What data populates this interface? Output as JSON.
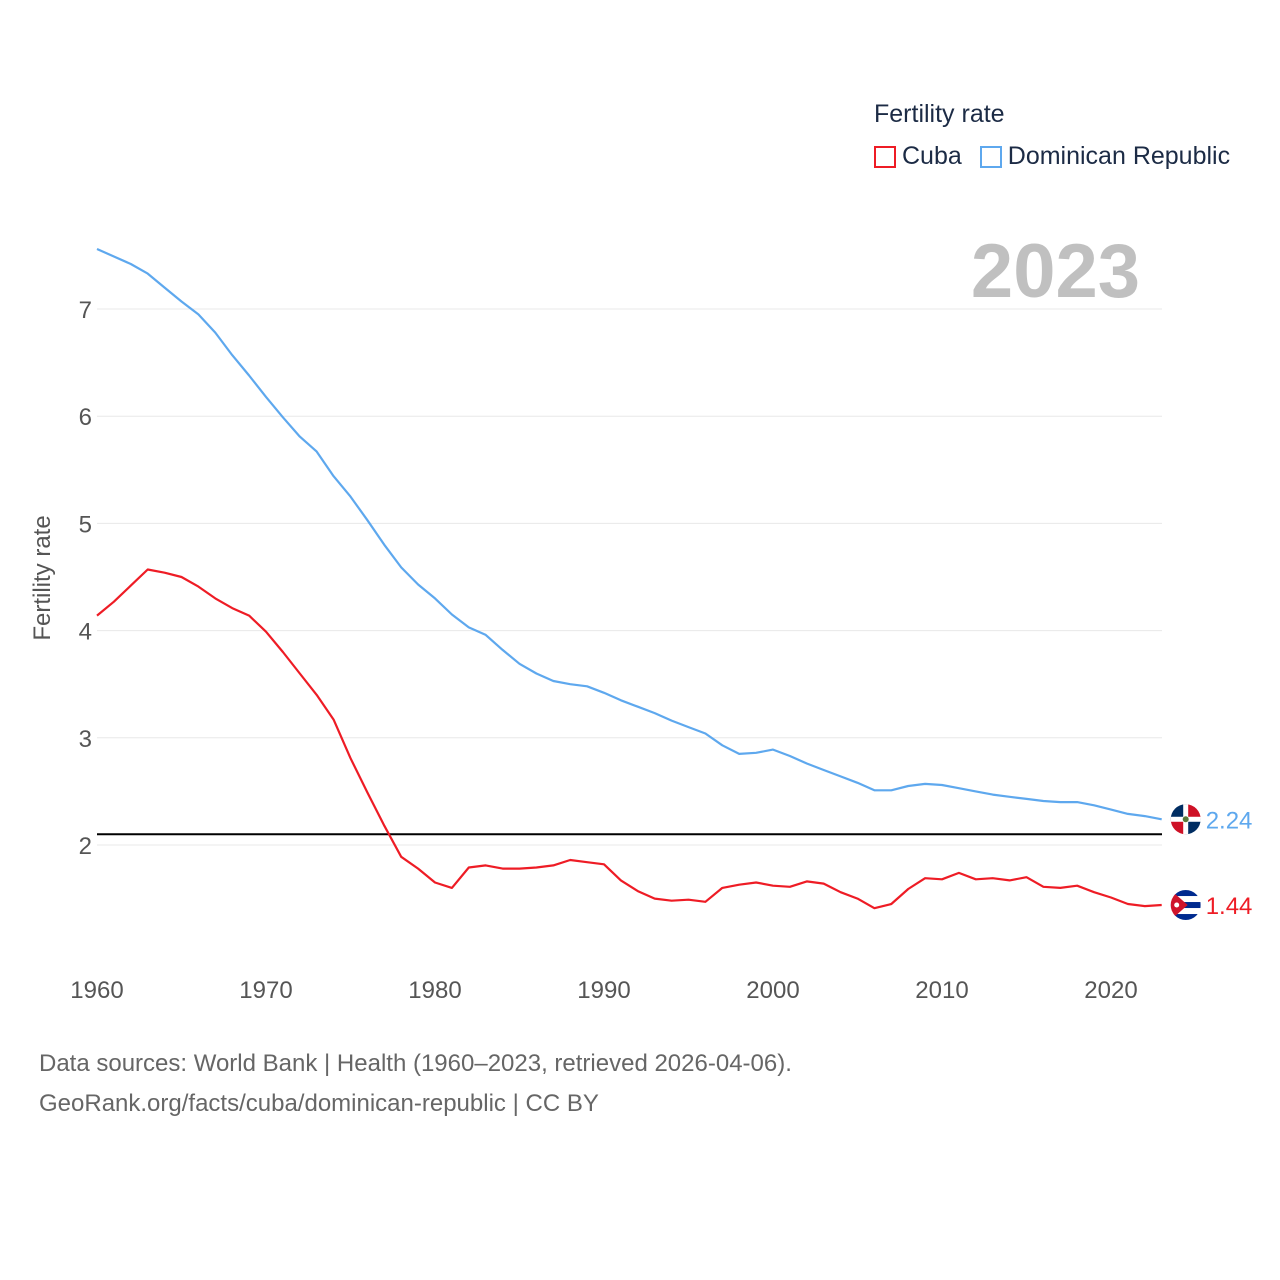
{
  "chart_data": {
    "type": "line",
    "title": "Fertility rate",
    "xlabel": "",
    "ylabel": "Fertility rate",
    "xlim": [
      1960,
      2023
    ],
    "ylim": [
      1.25,
      7.6
    ],
    "x_ticks": [
      1960,
      1970,
      1980,
      1990,
      2000,
      2010,
      2020
    ],
    "y_ticks": [
      2,
      3,
      4,
      5,
      6,
      7
    ],
    "grid": true,
    "legend_placement": "top-right",
    "highlight_year": "2023",
    "reference_line": 2.1,
    "x": [
      1960,
      1961,
      1962,
      1963,
      1964,
      1965,
      1966,
      1967,
      1968,
      1969,
      1970,
      1971,
      1972,
      1973,
      1974,
      1975,
      1976,
      1977,
      1978,
      1979,
      1980,
      1981,
      1982,
      1983,
      1984,
      1985,
      1986,
      1987,
      1988,
      1989,
      1990,
      1991,
      1992,
      1993,
      1994,
      1995,
      1996,
      1997,
      1998,
      1999,
      2000,
      2001,
      2002,
      2003,
      2004,
      2005,
      2006,
      2007,
      2008,
      2009,
      2010,
      2011,
      2012,
      2013,
      2014,
      2015,
      2016,
      2017,
      2018,
      2019,
      2020,
      2021,
      2022,
      2023
    ],
    "series": [
      {
        "name": "Cuba",
        "color": "#ee1c25",
        "end_label": "1.44",
        "flag": "cuba-flag",
        "values": [
          4.14,
          4.27,
          4.42,
          4.57,
          4.54,
          4.5,
          4.41,
          4.3,
          4.21,
          4.14,
          3.99,
          3.8,
          3.6,
          3.4,
          3.17,
          2.81,
          2.49,
          2.18,
          1.89,
          1.78,
          1.65,
          1.6,
          1.79,
          1.81,
          1.78,
          1.78,
          1.79,
          1.81,
          1.86,
          1.84,
          1.82,
          1.67,
          1.57,
          1.5,
          1.48,
          1.49,
          1.47,
          1.6,
          1.63,
          1.65,
          1.62,
          1.61,
          1.66,
          1.64,
          1.56,
          1.5,
          1.41,
          1.45,
          1.59,
          1.69,
          1.68,
          1.74,
          1.68,
          1.69,
          1.67,
          1.7,
          1.61,
          1.6,
          1.62,
          1.56,
          1.51,
          1.45,
          1.43,
          1.44
        ]
      },
      {
        "name": "Dominican Republic",
        "color": "#5ea8ee",
        "end_label": "2.24",
        "flag": "dominican-republic-flag",
        "values": [
          7.56,
          7.49,
          7.42,
          7.33,
          7.2,
          7.07,
          6.95,
          6.78,
          6.57,
          6.38,
          6.18,
          5.99,
          5.81,
          5.67,
          5.44,
          5.25,
          5.03,
          4.8,
          4.59,
          4.43,
          4.3,
          4.15,
          4.03,
          3.96,
          3.82,
          3.69,
          3.6,
          3.53,
          3.5,
          3.48,
          3.42,
          3.35,
          3.29,
          3.23,
          3.16,
          3.1,
          3.04,
          2.93,
          2.85,
          2.86,
          2.89,
          2.83,
          2.76,
          2.7,
          2.64,
          2.58,
          2.51,
          2.51,
          2.55,
          2.57,
          2.56,
          2.53,
          2.5,
          2.47,
          2.45,
          2.43,
          2.41,
          2.4,
          2.4,
          2.37,
          2.33,
          2.29,
          2.27,
          2.24
        ]
      }
    ]
  },
  "legend": {
    "title": "Fertility rate",
    "items": [
      "Cuba",
      "Dominican Republic"
    ]
  },
  "source": {
    "line1": "Data sources: World Bank | Health (1960–2023, retrieved 2026-04-06).",
    "line2": "GeoRank.org/facts/cuba/dominican-republic | CC BY"
  }
}
